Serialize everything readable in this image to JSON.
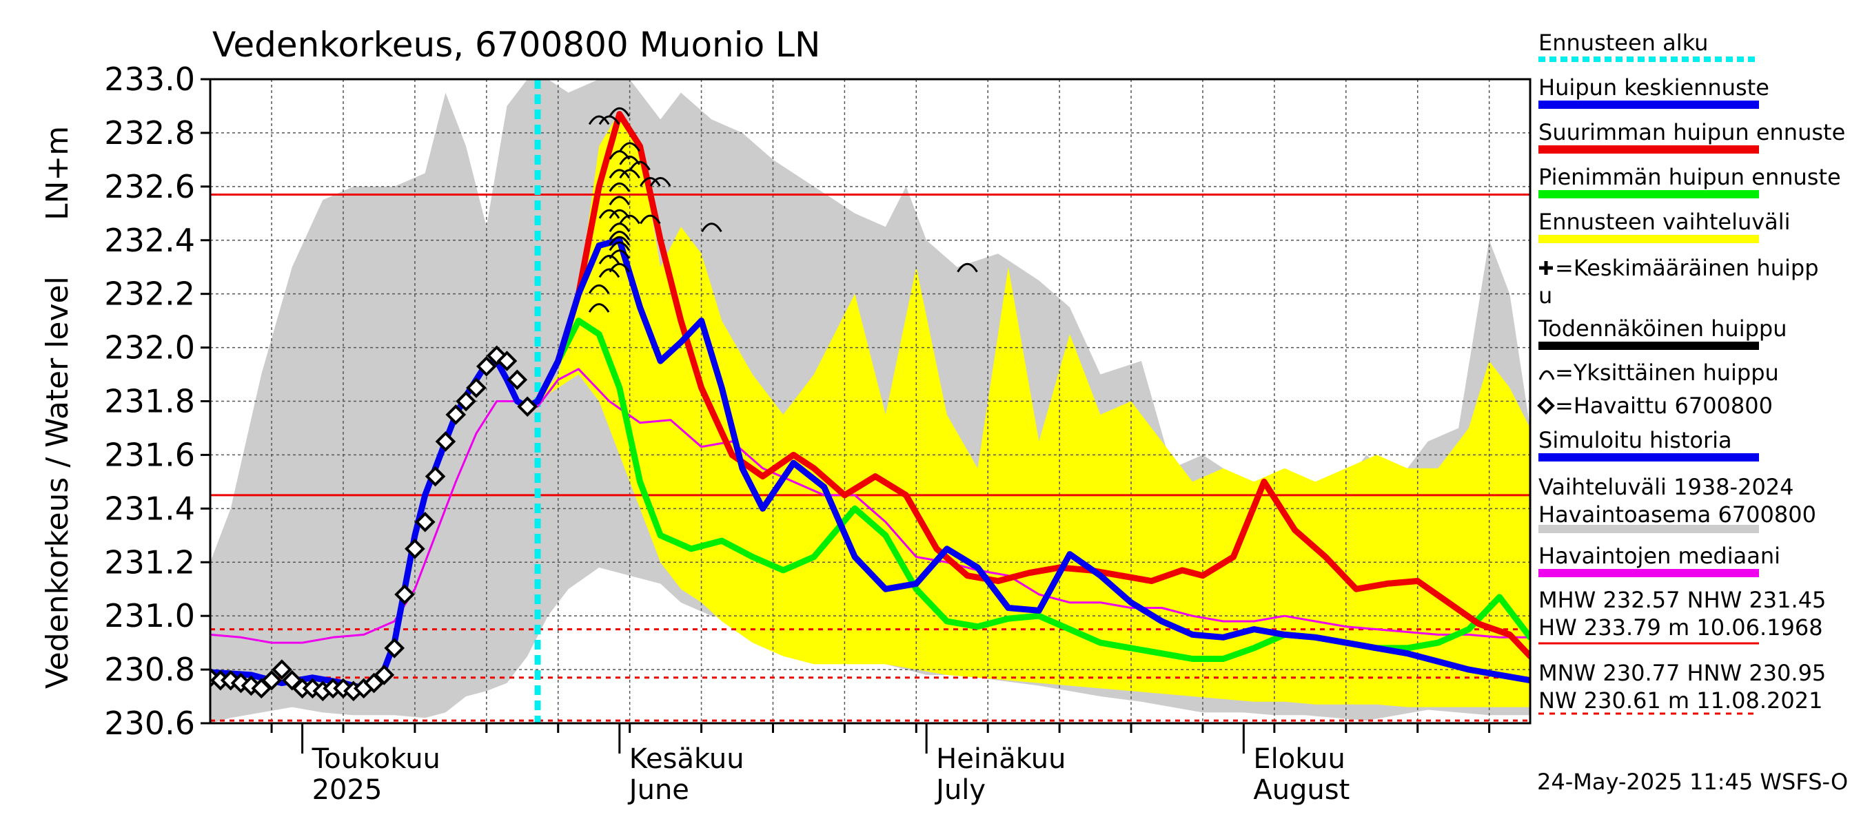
{
  "chart_data": {
    "type": "line",
    "title": "Vedenkorkeus, 6700800 Muonio LN",
    "ylabel": "Vedenkorkeus / Water level",
    "yunit": "LN+m",
    "ylim": [
      230.6,
      233.0
    ],
    "yticks": [
      230.6,
      230.8,
      231.0,
      231.2,
      231.4,
      231.6,
      231.8,
      232.0,
      232.2,
      232.4,
      232.6,
      232.8,
      233.0
    ],
    "ytick_labels": [
      "230.6",
      "230.8",
      "231.0",
      "231.2",
      "231.4",
      "231.6",
      "231.8",
      "232.0",
      "232.2",
      "232.4",
      "232.6",
      "232.8",
      "233.0"
    ],
    "xlim": [
      "2025-04-22",
      "2025-08-29"
    ],
    "grid": true,
    "legend_position": "right",
    "month_labels": [
      {
        "date": "2025-05-01",
        "line1": "Toukokuu",
        "line2": "2025"
      },
      {
        "date": "2025-06-01",
        "line1": "Kesäkuu",
        "line2": "June"
      },
      {
        "date": "2025-07-01",
        "line1": "Heinäkuu",
        "line2": "July"
      },
      {
        "date": "2025-08-01",
        "line1": "Elokuu",
        "line2": "August"
      }
    ],
    "forecast_start": "2025-05-24",
    "reference_lines": [
      {
        "label": "MHW",
        "value": 232.57,
        "color": "#ee0000",
        "style": "solid"
      },
      {
        "label": "NHW",
        "value": 231.45,
        "color": "#ee0000",
        "style": "solid"
      },
      {
        "label": "HNW",
        "value": 230.95,
        "color": "#ee0000",
        "style": "dashed"
      },
      {
        "label": "MNW",
        "value": 230.77,
        "color": "#ee0000",
        "style": "dashed"
      },
      {
        "label": "NW",
        "value": 230.61,
        "color": "#ee0000",
        "style": "dashed"
      }
    ],
    "grey_band": {
      "x": [
        "2025-04-22",
        "2025-04-24",
        "2025-04-27",
        "2025-04-30",
        "2025-05-03",
        "2025-05-06",
        "2025-05-10",
        "2025-05-13",
        "2025-05-15",
        "2025-05-17",
        "2025-05-19",
        "2025-05-21",
        "2025-05-23",
        "2025-05-25",
        "2025-05-27",
        "2025-05-30",
        "2025-06-02",
        "2025-06-05",
        "2025-06-07",
        "2025-06-10",
        "2025-06-13",
        "2025-06-16",
        "2025-06-20",
        "2025-06-24",
        "2025-06-27",
        "2025-06-29",
        "2025-07-01",
        "2025-07-04",
        "2025-07-08",
        "2025-07-12",
        "2025-07-15",
        "2025-07-18",
        "2025-07-22",
        "2025-07-25",
        "2025-07-28",
        "2025-08-01",
        "2025-08-04",
        "2025-08-07",
        "2025-08-10",
        "2025-08-13",
        "2025-08-16",
        "2025-08-19",
        "2025-08-22",
        "2025-08-25",
        "2025-08-27",
        "2025-08-29"
      ],
      "upper": [
        231.2,
        231.4,
        231.9,
        232.3,
        232.55,
        232.6,
        232.6,
        232.65,
        232.95,
        232.75,
        232.45,
        232.9,
        233.0,
        233.0,
        232.95,
        233.0,
        233.0,
        232.85,
        232.95,
        232.85,
        232.8,
        232.7,
        232.6,
        232.5,
        232.45,
        232.6,
        232.4,
        232.3,
        232.35,
        232.25,
        232.15,
        231.9,
        231.95,
        231.55,
        231.6,
        231.5,
        231.45,
        231.5,
        231.45,
        231.6,
        231.5,
        231.65,
        231.7,
        232.4,
        232.2,
        231.7
      ],
      "lower": [
        230.6,
        230.62,
        230.64,
        230.66,
        230.64,
        230.63,
        230.63,
        230.62,
        230.64,
        230.7,
        230.72,
        230.75,
        230.85,
        231.0,
        231.1,
        231.18,
        231.15,
        231.12,
        231.05,
        231.0,
        230.98,
        230.95,
        230.9,
        230.85,
        230.82,
        230.8,
        230.78,
        230.78,
        230.76,
        230.74,
        230.72,
        230.7,
        230.68,
        230.66,
        230.64,
        230.64,
        230.63,
        230.63,
        230.62,
        230.61,
        230.63,
        230.65,
        230.64,
        230.63,
        230.63,
        230.63
      ]
    },
    "yellow_band": {
      "x": [
        "2025-05-24",
        "2025-05-26",
        "2025-05-28",
        "2025-05-30",
        "2025-06-01",
        "2025-06-03",
        "2025-06-05",
        "2025-06-07",
        "2025-06-09",
        "2025-06-11",
        "2025-06-14",
        "2025-06-17",
        "2025-06-20",
        "2025-06-24",
        "2025-06-27",
        "2025-06-30",
        "2025-07-03",
        "2025-07-06",
        "2025-07-09",
        "2025-07-12",
        "2025-07-15",
        "2025-07-18",
        "2025-07-21",
        "2025-07-24",
        "2025-07-27",
        "2025-07-30",
        "2025-08-02",
        "2025-08-05",
        "2025-08-08",
        "2025-08-11",
        "2025-08-14",
        "2025-08-17",
        "2025-08-20",
        "2025-08-23",
        "2025-08-25",
        "2025-08-27",
        "2025-08-29"
      ],
      "upper": [
        231.8,
        231.9,
        232.2,
        232.75,
        232.88,
        232.75,
        232.3,
        232.45,
        232.35,
        232.1,
        231.9,
        231.75,
        231.9,
        232.2,
        231.75,
        232.3,
        231.75,
        231.55,
        232.3,
        231.65,
        232.05,
        231.75,
        231.8,
        231.65,
        231.5,
        231.55,
        231.5,
        231.55,
        231.5,
        231.55,
        231.6,
        231.55,
        231.55,
        231.7,
        231.95,
        231.85,
        231.7
      ],
      "lower": [
        231.8,
        231.85,
        231.9,
        231.8,
        231.6,
        231.4,
        231.2,
        231.1,
        231.05,
        230.98,
        230.9,
        230.85,
        230.82,
        230.82,
        230.82,
        230.8,
        230.78,
        230.77,
        230.76,
        230.75,
        230.74,
        230.73,
        230.72,
        230.71,
        230.7,
        230.69,
        230.68,
        230.68,
        230.67,
        230.67,
        230.67,
        230.66,
        230.66,
        230.66,
        230.66,
        230.66,
        230.66
      ]
    },
    "series": [
      {
        "name": "Havaintojen mediaani",
        "color": "#ee00ee",
        "x": [
          "2025-04-22",
          "2025-04-25",
          "2025-04-28",
          "2025-05-01",
          "2025-05-04",
          "2025-05-07",
          "2025-05-10",
          "2025-05-12",
          "2025-05-14",
          "2025-05-16",
          "2025-05-18",
          "2025-05-20",
          "2025-05-22",
          "2025-05-24",
          "2025-05-26",
          "2025-05-28",
          "2025-05-31",
          "2025-06-03",
          "2025-06-06",
          "2025-06-09",
          "2025-06-12",
          "2025-06-15",
          "2025-06-18",
          "2025-06-21",
          "2025-06-24",
          "2025-06-27",
          "2025-06-30",
          "2025-07-03",
          "2025-07-06",
          "2025-07-09",
          "2025-07-12",
          "2025-07-15",
          "2025-07-18",
          "2025-07-21",
          "2025-07-24",
          "2025-07-27",
          "2025-07-30",
          "2025-08-02",
          "2025-08-05",
          "2025-08-08",
          "2025-08-11",
          "2025-08-14",
          "2025-08-17",
          "2025-08-20",
          "2025-08-23",
          "2025-08-26",
          "2025-08-29"
        ],
        "values": [
          230.93,
          230.92,
          230.9,
          230.9,
          230.92,
          230.93,
          230.98,
          231.1,
          231.3,
          231.5,
          231.68,
          231.8,
          231.8,
          231.78,
          231.88,
          231.92,
          231.8,
          231.72,
          231.73,
          231.63,
          231.65,
          231.55,
          231.5,
          231.45,
          231.45,
          231.35,
          231.22,
          231.2,
          231.17,
          231.15,
          231.08,
          231.05,
          231.05,
          231.03,
          231.03,
          231.0,
          230.98,
          230.98,
          231.0,
          230.98,
          230.96,
          230.95,
          230.94,
          230.93,
          230.93,
          230.92,
          230.92
        ]
      },
      {
        "name": "Pienimmän huipun ennuste",
        "color": "#00ee00",
        "x": [
          "2025-05-24",
          "2025-05-26",
          "2025-05-28",
          "2025-05-30",
          "2025-06-01",
          "2025-06-03",
          "2025-06-05",
          "2025-06-08",
          "2025-06-11",
          "2025-06-14",
          "2025-06-17",
          "2025-06-20",
          "2025-06-24",
          "2025-06-27",
          "2025-06-30",
          "2025-07-03",
          "2025-07-06",
          "2025-07-09",
          "2025-07-12",
          "2025-07-15",
          "2025-07-18",
          "2025-07-21",
          "2025-07-24",
          "2025-07-27",
          "2025-07-30",
          "2025-08-02",
          "2025-08-05",
          "2025-08-08",
          "2025-08-11",
          "2025-08-14",
          "2025-08-17",
          "2025-08-20",
          "2025-08-23",
          "2025-08-26",
          "2025-08-29"
        ],
        "values": [
          231.8,
          231.95,
          232.1,
          232.05,
          231.85,
          231.5,
          231.3,
          231.25,
          231.28,
          231.22,
          231.17,
          231.22,
          231.4,
          231.3,
          231.1,
          230.98,
          230.96,
          230.99,
          231.0,
          230.95,
          230.9,
          230.88,
          230.86,
          230.84,
          230.84,
          230.88,
          230.93,
          230.92,
          230.9,
          230.88,
          230.88,
          230.9,
          230.95,
          231.07,
          230.92
        ]
      },
      {
        "name": "Suurimman huipun ennuste",
        "color": "#ee0000",
        "x": [
          "2025-05-24",
          "2025-05-26",
          "2025-05-28",
          "2025-05-30",
          "2025-06-01",
          "2025-06-03",
          "2025-06-05",
          "2025-06-07",
          "2025-06-09",
          "2025-06-12",
          "2025-06-15",
          "2025-06-18",
          "2025-06-20",
          "2025-06-23",
          "2025-06-26",
          "2025-06-29",
          "2025-07-02",
          "2025-07-05",
          "2025-07-08",
          "2025-07-11",
          "2025-07-14",
          "2025-07-17",
          "2025-07-20",
          "2025-07-23",
          "2025-07-26",
          "2025-07-28",
          "2025-07-31",
          "2025-08-03",
          "2025-08-06",
          "2025-08-09",
          "2025-08-12",
          "2025-08-15",
          "2025-08-18",
          "2025-08-21",
          "2025-08-24",
          "2025-08-27",
          "2025-08-29"
        ],
        "values": [
          231.8,
          231.95,
          232.2,
          232.6,
          232.87,
          232.75,
          232.4,
          232.1,
          231.85,
          231.6,
          231.52,
          231.6,
          231.55,
          231.45,
          231.52,
          231.45,
          231.25,
          231.15,
          231.13,
          231.16,
          231.18,
          231.17,
          231.15,
          231.13,
          231.17,
          231.15,
          231.22,
          231.5,
          231.32,
          231.22,
          231.1,
          231.12,
          231.13,
          231.05,
          230.97,
          230.93,
          230.85
        ]
      },
      {
        "name": "Huipun keskiennuste",
        "color": "#0000ee",
        "x": [
          "2025-04-22",
          "2025-04-26",
          "2025-04-29",
          "2025-05-02",
          "2025-05-05",
          "2025-05-07",
          "2025-05-09",
          "2025-05-10",
          "2025-05-11",
          "2025-05-12",
          "2025-05-13",
          "2025-05-14",
          "2025-05-15",
          "2025-05-16",
          "2025-05-17",
          "2025-05-18",
          "2025-05-19",
          "2025-05-20",
          "2025-05-21",
          "2025-05-22",
          "2025-05-23",
          "2025-05-24",
          "2025-05-26",
          "2025-05-28",
          "2025-05-30",
          "2025-06-01",
          "2025-06-03",
          "2025-06-05",
          "2025-06-07",
          "2025-06-09",
          "2025-06-11",
          "2025-06-13",
          "2025-06-15",
          "2025-06-18",
          "2025-06-21",
          "2025-06-24",
          "2025-06-27",
          "2025-06-30",
          "2025-07-03",
          "2025-07-06",
          "2025-07-09",
          "2025-07-12",
          "2025-07-15",
          "2025-07-18",
          "2025-07-21",
          "2025-07-24",
          "2025-07-27",
          "2025-07-30",
          "2025-08-02",
          "2025-08-05",
          "2025-08-08",
          "2025-08-11",
          "2025-08-14",
          "2025-08-17",
          "2025-08-20",
          "2025-08-23",
          "2025-08-26",
          "2025-08-29"
        ],
        "values": [
          230.79,
          230.78,
          230.75,
          230.77,
          230.75,
          230.73,
          230.8,
          230.9,
          231.1,
          231.3,
          231.45,
          231.55,
          231.65,
          231.75,
          231.82,
          231.88,
          231.94,
          231.95,
          231.88,
          231.8,
          231.78,
          231.8,
          231.95,
          232.2,
          232.38,
          232.4,
          232.15,
          231.95,
          232.02,
          232.1,
          231.85,
          231.55,
          231.4,
          231.57,
          231.48,
          231.22,
          231.1,
          231.12,
          231.25,
          231.18,
          231.03,
          231.02,
          231.23,
          231.15,
          231.05,
          230.98,
          230.93,
          230.92,
          230.95,
          230.93,
          230.92,
          230.9,
          230.88,
          230.86,
          230.83,
          230.8,
          230.78,
          230.76
        ]
      }
    ],
    "observed": {
      "name": "Havaittu 6700800",
      "x": [
        "2025-04-22",
        "2025-04-23",
        "2025-04-24",
        "2025-04-25",
        "2025-04-26",
        "2025-04-27",
        "2025-04-28",
        "2025-04-29",
        "2025-04-30",
        "2025-05-01",
        "2025-05-02",
        "2025-05-03",
        "2025-05-04",
        "2025-05-05",
        "2025-05-06",
        "2025-05-07",
        "2025-05-08",
        "2025-05-09",
        "2025-05-10",
        "2025-05-11",
        "2025-05-12",
        "2025-05-13",
        "2025-05-14",
        "2025-05-15",
        "2025-05-16",
        "2025-05-17",
        "2025-05-18",
        "2025-05-19",
        "2025-05-20",
        "2025-05-21",
        "2025-05-22",
        "2025-05-23"
      ],
      "values": [
        230.77,
        230.76,
        230.76,
        230.75,
        230.74,
        230.73,
        230.76,
        230.8,
        230.76,
        230.73,
        230.73,
        230.72,
        230.73,
        230.73,
        230.72,
        230.73,
        230.75,
        230.78,
        230.88,
        231.08,
        231.25,
        231.35,
        231.52,
        231.65,
        231.75,
        231.8,
        231.85,
        231.93,
        231.97,
        231.95,
        231.88,
        231.78
      ]
    },
    "peak_markers": {
      "name": "Yksittäinen huippu",
      "x": [
        "2025-05-30",
        "2025-05-30",
        "2025-05-30",
        "2025-05-31",
        "2025-05-31",
        "2025-05-31",
        "2025-05-31",
        "2025-06-01",
        "2025-06-01",
        "2025-06-01",
        "2025-06-01",
        "2025-06-01",
        "2025-06-01",
        "2025-06-01",
        "2025-06-01",
        "2025-06-01",
        "2025-06-01",
        "2025-06-01",
        "2025-06-01",
        "2025-06-02",
        "2025-06-02",
        "2025-06-02",
        "2025-06-02",
        "2025-06-03",
        "2025-06-04",
        "2025-06-04",
        "2025-06-05",
        "2025-06-10",
        "2025-07-05"
      ],
      "values": [
        232.85,
        232.15,
        232.22,
        232.28,
        232.85,
        232.5,
        232.33,
        232.88,
        232.72,
        232.65,
        232.6,
        232.55,
        232.5,
        232.45,
        232.42,
        232.4,
        232.38,
        232.35,
        232.3,
        232.75,
        232.7,
        232.65,
        232.48,
        232.68,
        232.62,
        232.48,
        232.62,
        232.45,
        232.3
      ]
    },
    "legend": [
      {
        "label": "Ennusteen alku",
        "color": "#00eeee",
        "style": "dotted"
      },
      {
        "label": "Huipun keskiennuste",
        "color": "#0000ee",
        "style": "solid"
      },
      {
        "label": "Suurimman huipun ennuste",
        "color": "#ee0000",
        "style": "solid"
      },
      {
        "label": "Pienimmän huipun ennuste",
        "color": "#00ee00",
        "style": "solid"
      },
      {
        "label": "Ennusteen vaihteluväli",
        "color": "#ffff00",
        "style": "solid"
      },
      {
        "label": "=Keskimääräinen huipp",
        "label2": "u",
        "color": "#000000",
        "style": "plus"
      },
      {
        "label": "Todennäköinen huippu",
        "color": "#000000",
        "style": "solid"
      },
      {
        "label": "=Yksittäinen huippu",
        "color": "#000000",
        "style": "arc"
      },
      {
        "label": "=Havaittu 6700800",
        "color": "#000000",
        "style": "diamond"
      },
      {
        "label": "Simuloitu historia",
        "color": "#0000ee",
        "style": "solid"
      },
      {
        "label": "Vaihteluväli 1938-2024",
        "label2": " Havaintoasema 6700800",
        "color": "#cccccc",
        "style": "solid"
      },
      {
        "label": "Havaintojen mediaani",
        "color": "#ee00ee",
        "style": "solid"
      },
      {
        "label": "MHW 232.57 NHW 231.45",
        "label2": "HW 233.79 m 10.06.1968",
        "color": "#ee0000",
        "style": "thin"
      },
      {
        "label": "MNW 230.77 HNW 230.95",
        "label2": "NW 230.61 m 11.08.2021",
        "color": "#ee0000",
        "style": "dashed"
      }
    ],
    "footer": "24-May-2025 11:45 WSFS-O"
  }
}
